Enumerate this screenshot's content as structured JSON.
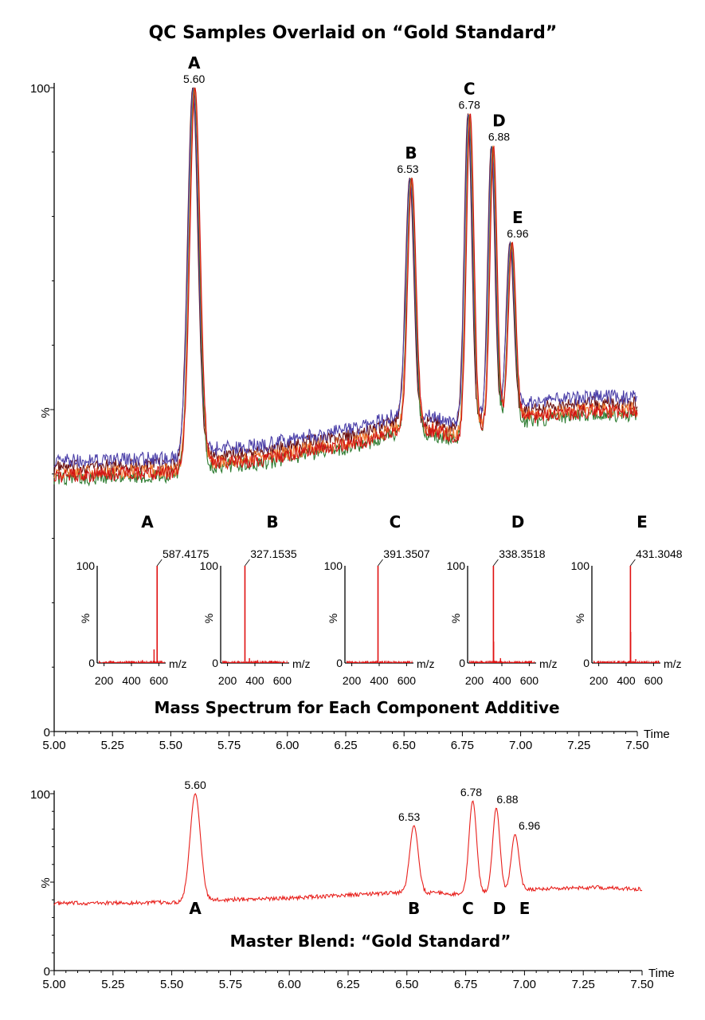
{
  "colors": {
    "gold": "#e8201c",
    "qc_red": "#d11414",
    "qc_darkred": "#6b1010",
    "qc_blue": "#4b3fa8",
    "qc_green": "#2e7d32",
    "qc_orange": "#f07a30",
    "ms_peak": "#e01010"
  },
  "chart_data": [
    {
      "type": "line",
      "id": "qc-overlay",
      "title": "QC Samples Overlaid on “Gold Standard”",
      "xlabel": "Time",
      "ylabel": "%",
      "xlim": [
        5.0,
        7.5
      ],
      "ylim": [
        0,
        100
      ],
      "x_ticks": [
        "5.00",
        "5.25",
        "5.50",
        "5.75",
        "6.00",
        "6.25",
        "6.50",
        "6.75",
        "7.00",
        "7.25",
        "7.50"
      ],
      "y_ticks": [
        "0",
        "100"
      ],
      "baseline_samples": [
        {
          "t": 5.0,
          "v": 40
        },
        {
          "t": 5.5,
          "v": 40.5
        },
        {
          "t": 5.7,
          "v": 42
        },
        {
          "t": 5.9,
          "v": 42.5
        },
        {
          "t": 6.1,
          "v": 44
        },
        {
          "t": 6.3,
          "v": 45
        },
        {
          "t": 6.45,
          "v": 47
        },
        {
          "t": 6.62,
          "v": 47
        },
        {
          "t": 6.72,
          "v": 46
        },
        {
          "t": 7.0,
          "v": 49
        },
        {
          "t": 7.3,
          "v": 50
        },
        {
          "t": 7.5,
          "v": 50
        }
      ],
      "peaks": [
        {
          "label": "A",
          "rt": "5.60",
          "time": 5.6,
          "height": 100,
          "width": 0.022
        },
        {
          "label": "B",
          "rt": "6.53",
          "time": 6.53,
          "height": 86,
          "width": 0.018
        },
        {
          "label": "C",
          "rt": "6.78",
          "time": 6.78,
          "height": 96,
          "width": 0.016
        },
        {
          "label": "D",
          "rt": "6.88",
          "time": 6.88,
          "height": 91,
          "width": 0.015
        },
        {
          "label": "E",
          "rt": "6.96",
          "time": 6.96,
          "height": 76,
          "width": 0.016
        }
      ],
      "series": [
        {
          "color": "#6b1010",
          "offset": 1.0,
          "shift": -0.006
        },
        {
          "color": "#4b3fa8",
          "offset": 2.0,
          "shift": -0.004
        },
        {
          "color": "#2e7d32",
          "offset": -0.8,
          "shift": 0.0
        },
        {
          "color": "#f07a30",
          "offset": 0.0,
          "shift": 0.002
        },
        {
          "color": "#d11414",
          "offset": -0.3,
          "shift": 0.004
        }
      ]
    },
    {
      "type": "line",
      "id": "gold-standard",
      "title": "Master Blend: “Gold Standard”",
      "xlabel": "Time",
      "ylabel": "%",
      "xlim": [
        5.0,
        7.5
      ],
      "ylim": [
        0,
        100
      ],
      "x_ticks": [
        "5.00",
        "5.25",
        "5.50",
        "5.75",
        "6.00",
        "6.25",
        "6.50",
        "6.75",
        "7.00",
        "7.25",
        "7.50"
      ],
      "y_ticks": [
        "0",
        "100"
      ],
      "baseline_samples": [
        {
          "t": 5.0,
          "v": 38
        },
        {
          "t": 5.5,
          "v": 38.5
        },
        {
          "t": 5.7,
          "v": 40
        },
        {
          "t": 6.0,
          "v": 41
        },
        {
          "t": 6.3,
          "v": 43
        },
        {
          "t": 6.45,
          "v": 44
        },
        {
          "t": 6.62,
          "v": 44
        },
        {
          "t": 6.72,
          "v": 43
        },
        {
          "t": 7.0,
          "v": 46
        },
        {
          "t": 7.3,
          "v": 47
        },
        {
          "t": 7.5,
          "v": 46
        }
      ],
      "peaks": [
        {
          "label": "A",
          "rt": "5.60",
          "time": 5.6,
          "height": 100,
          "width": 0.022
        },
        {
          "label": "B",
          "rt": "6.53",
          "time": 6.53,
          "height": 82,
          "width": 0.018
        },
        {
          "label": "C",
          "rt": "6.78",
          "time": 6.78,
          "height": 96,
          "width": 0.016
        },
        {
          "label": "D",
          "rt": "6.88",
          "time": 6.88,
          "height": 92,
          "width": 0.015
        },
        {
          "label": "E",
          "rt": "6.96",
          "time": 6.96,
          "height": 77,
          "width": 0.016
        }
      ]
    }
  ],
  "mass_spectra": {
    "title": "Mass Spectrum for Each Component Additive",
    "xlabel": "m/z",
    "ylabel": "%",
    "x_ticks": [
      "200",
      "400",
      "600"
    ],
    "y_ticks": [
      "0",
      "100"
    ],
    "xlim": [
      150,
      650
    ],
    "panels": [
      {
        "label": "A",
        "base_peak": "587.4175",
        "mz": 587.4175,
        "minor": [
          {
            "mz": 565,
            "i": 14
          },
          {
            "mz": 480,
            "i": 3
          }
        ]
      },
      {
        "label": "B",
        "base_peak": "327.1535",
        "mz": 327.1535,
        "minor": [
          {
            "mz": 360,
            "i": 5
          },
          {
            "mz": 420,
            "i": 3
          }
        ]
      },
      {
        "label": "C",
        "base_peak": "391.3507",
        "mz": 391.3507,
        "minor": [
          {
            "mz": 300,
            "i": 2
          }
        ]
      },
      {
        "label": "D",
        "base_peak": "338.3518",
        "mz": 338.3518,
        "minor": [
          {
            "mz": 340,
            "i": 22
          },
          {
            "mz": 390,
            "i": 5
          }
        ]
      },
      {
        "label": "E",
        "base_peak": "431.3048",
        "mz": 431.3048,
        "minor": [
          {
            "mz": 433,
            "i": 32
          },
          {
            "mz": 470,
            "i": 4
          }
        ]
      }
    ]
  }
}
